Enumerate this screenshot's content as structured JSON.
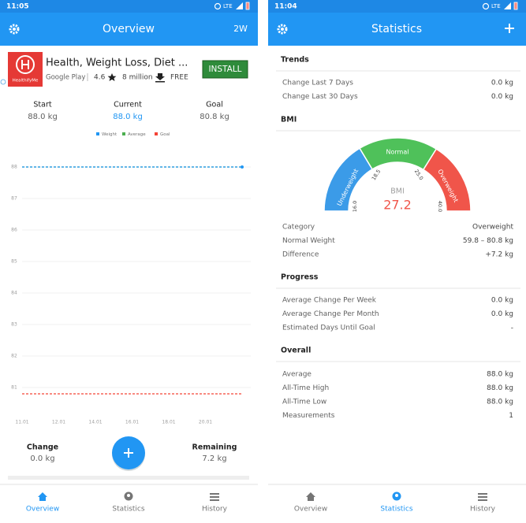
{
  "overview": {
    "status_time": "11:05",
    "status_network": "LTE",
    "title": "Overview",
    "range_button": "2W",
    "ad": {
      "icon_label": "HealthifyMe",
      "title": "Health, Weight Loss, Diet ...",
      "store": "Google Play",
      "rating": "4.6",
      "installs": "8 million",
      "price": "FREE",
      "button": "INSTALL"
    },
    "summary": [
      {
        "label": "Start",
        "value": "88.0 kg"
      },
      {
        "label": "Current",
        "value": "88.0 kg"
      },
      {
        "label": "Goal",
        "value": "80.8 kg"
      }
    ],
    "chart_data": {
      "type": "line",
      "categories": [
        "11.01",
        "12.01",
        "14.01",
        "16.01",
        "18.01",
        "20.01",
        null
      ],
      "series": [
        {
          "name": "Weight",
          "color": "#2196f3",
          "values": [
            88,
            88,
            88,
            88,
            88,
            88,
            88
          ]
        },
        {
          "name": "Average",
          "color": "#4caf50",
          "values": [
            88,
            88,
            88,
            88,
            88,
            88,
            88
          ]
        },
        {
          "name": "Goal",
          "color": "#f44336",
          "values": [
            80.8,
            80.8,
            80.8,
            80.8,
            80.8,
            80.8,
            80.8
          ]
        }
      ],
      "ylim": [
        80.2,
        88.3
      ],
      "yticks": [
        81,
        82,
        83,
        84,
        85,
        86,
        87,
        88
      ],
      "grid": true
    },
    "bottom": {
      "change_label": "Change",
      "change_value": "0.0 kg",
      "remaining_label": "Remaining",
      "remaining_value": "7.2 kg"
    },
    "nav": [
      "Overview",
      "Statistics",
      "History"
    ]
  },
  "statistics": {
    "status_time": "11:04",
    "status_network": "LTE",
    "title": "Statistics",
    "sections": [
      {
        "heading": "Trends",
        "rows": [
          [
            "Change Last 7 Days",
            "0.0 kg"
          ],
          [
            "Change Last 30 Days",
            "0.0 kg"
          ]
        ]
      },
      {
        "heading": "BMI",
        "rows": [
          [
            "Category",
            "Overweight"
          ],
          [
            "Normal Weight",
            "59.8 – 80.8 kg"
          ],
          [
            "Difference",
            "+7.2 kg"
          ]
        ]
      },
      {
        "heading": "Progress",
        "rows": [
          [
            "Average Change Per Week",
            "0.0 kg"
          ],
          [
            "Average Change Per Month",
            "0.0 kg"
          ],
          [
            "Estimated Days Until Goal",
            "-"
          ]
        ]
      },
      {
        "heading": "Overall",
        "rows": [
          [
            "Average",
            "88.0 kg"
          ],
          [
            "All-Time High",
            "88.0 kg"
          ],
          [
            "All-Time Low",
            "88.0 kg"
          ],
          [
            "Measurements",
            "1"
          ]
        ]
      }
    ],
    "gauge": {
      "label": "BMI",
      "value": "27.2",
      "zones": [
        "Underweight",
        "Normal",
        "Overweight"
      ],
      "ticks": [
        "16.0",
        "18.5",
        "25.0",
        "40.0"
      ]
    },
    "nav": [
      "Overview",
      "Statistics",
      "History"
    ]
  }
}
